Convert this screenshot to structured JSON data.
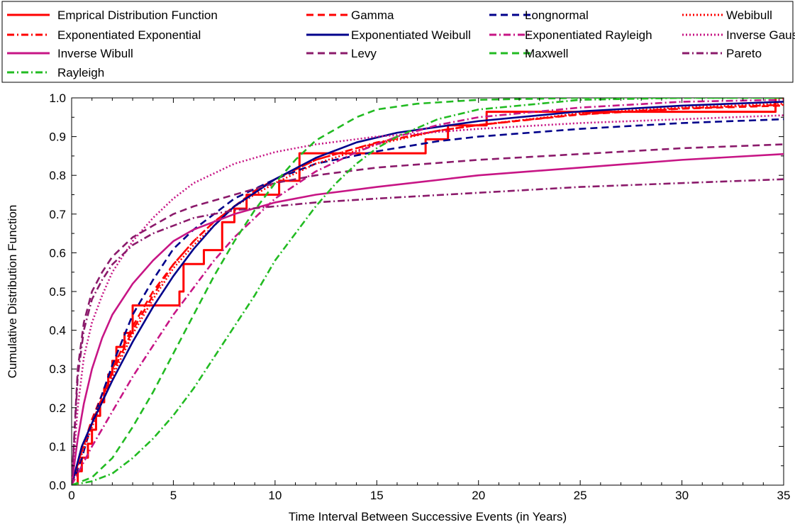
{
  "chart_data": {
    "type": "line",
    "title": "",
    "xlabel": "Time Interval Between Successive Events (in Years)",
    "ylabel": "Cumulative Distribution Function",
    "xlim": [
      0,
      35
    ],
    "ylim": [
      0,
      1
    ],
    "xticks": [
      "0",
      "5",
      "10",
      "15",
      "20",
      "25",
      "30",
      "35"
    ],
    "yticks": [
      "0.0",
      "0.1",
      "0.2",
      "0.3",
      "0.4",
      "0.5",
      "0.6",
      "0.7",
      "0.8",
      "0.9",
      "1.0"
    ],
    "grid": false,
    "legend_position": "top",
    "legend_columns": 4,
    "series": [
      {
        "name": "Emprical Distribution Function",
        "color": "#ff0000",
        "dash": "solid",
        "step": true,
        "x": [
          0,
          0.3,
          0.5,
          0.8,
          1.0,
          1.2,
          1.4,
          1.6,
          1.8,
          2.0,
          2.2,
          2.6,
          3.0,
          5.3,
          5.5,
          6.5,
          7.4,
          8.0,
          8.6,
          10.2,
          11.2,
          17.4,
          18.5,
          20.4,
          34.6,
          35
        ],
        "y": [
          0,
          0.036,
          0.071,
          0.107,
          0.143,
          0.179,
          0.214,
          0.25,
          0.286,
          0.321,
          0.357,
          0.393,
          0.464,
          0.5,
          0.571,
          0.607,
          0.679,
          0.714,
          0.75,
          0.786,
          0.857,
          0.893,
          0.929,
          0.964,
          1.0,
          1.0
        ]
      },
      {
        "name": "Gamma",
        "color": "#ff0000",
        "dash": "dashed",
        "x": [
          0,
          0.5,
          1,
          2,
          3,
          4,
          5,
          6,
          7,
          8,
          9,
          10,
          12,
          14,
          16,
          18,
          20,
          25,
          30,
          35
        ],
        "y": [
          0,
          0.09,
          0.17,
          0.3,
          0.41,
          0.5,
          0.57,
          0.63,
          0.68,
          0.72,
          0.76,
          0.79,
          0.84,
          0.87,
          0.895,
          0.915,
          0.93,
          0.957,
          0.972,
          0.98
        ]
      },
      {
        "name": "Longnormal",
        "color": "#00008b",
        "dash": "dashed",
        "x": [
          0,
          0.5,
          1,
          2,
          3,
          4,
          5,
          6,
          7,
          8,
          10,
          12,
          15,
          18,
          20,
          25,
          30,
          35
        ],
        "y": [
          0,
          0.07,
          0.16,
          0.31,
          0.44,
          0.53,
          0.61,
          0.66,
          0.7,
          0.74,
          0.79,
          0.83,
          0.862,
          0.888,
          0.9,
          0.92,
          0.935,
          0.945
        ]
      },
      {
        "name": "Webibull",
        "color": "#ff0000",
        "dash": "dotted",
        "x": [
          0,
          0.5,
          1,
          2,
          3,
          4,
          5,
          6,
          7,
          8,
          10,
          12,
          15,
          18,
          20,
          25,
          30,
          35
        ],
        "y": [
          0,
          0.08,
          0.15,
          0.28,
          0.39,
          0.48,
          0.56,
          0.62,
          0.67,
          0.72,
          0.78,
          0.83,
          0.88,
          0.915,
          0.93,
          0.96,
          0.975,
          0.985
        ]
      },
      {
        "name": "Exponentiated Exponential",
        "color": "#ff0000",
        "dash": "dashdot",
        "x": [
          0,
          0.5,
          1,
          2,
          3,
          4,
          5,
          6,
          7,
          8,
          10,
          12,
          15,
          18,
          20,
          25,
          30,
          35
        ],
        "y": [
          0,
          0.09,
          0.16,
          0.29,
          0.4,
          0.49,
          0.57,
          0.63,
          0.68,
          0.72,
          0.79,
          0.84,
          0.885,
          0.915,
          0.93,
          0.958,
          0.973,
          0.982
        ]
      },
      {
        "name": "Exponentiated Weibull",
        "color": "#00008b",
        "dash": "solid",
        "x": [
          0,
          0.5,
          1,
          2,
          3,
          4,
          5,
          6,
          7,
          8,
          10,
          12,
          14,
          16,
          18,
          20,
          25,
          30,
          35
        ],
        "y": [
          0,
          0.1,
          0.16,
          0.27,
          0.37,
          0.46,
          0.54,
          0.61,
          0.67,
          0.72,
          0.79,
          0.845,
          0.885,
          0.91,
          0.925,
          0.94,
          0.965,
          0.98,
          0.99
        ]
      },
      {
        "name": "Exponentiated Rayleigh",
        "color": "#c71585",
        "dash": "dashdot",
        "x": [
          0,
          0.5,
          1,
          2,
          3,
          4,
          5,
          6,
          7,
          8,
          10,
          12,
          14,
          16,
          18,
          20,
          25,
          30,
          35
        ],
        "y": [
          0,
          0.05,
          0.1,
          0.19,
          0.28,
          0.36,
          0.44,
          0.51,
          0.58,
          0.64,
          0.74,
          0.81,
          0.86,
          0.9,
          0.93,
          0.95,
          0.975,
          0.99,
          0.995
        ]
      },
      {
        "name": "Inverse Gaussian",
        "color": "#c71585",
        "dash": "dotted",
        "x": [
          0,
          0.3,
          0.6,
          1,
          1.5,
          2,
          3,
          4,
          5,
          6,
          8,
          10,
          12,
          15,
          20,
          25,
          30,
          35
        ],
        "y": [
          0,
          0.2,
          0.33,
          0.42,
          0.49,
          0.55,
          0.63,
          0.69,
          0.74,
          0.78,
          0.83,
          0.86,
          0.88,
          0.9,
          0.92,
          0.935,
          0.945,
          0.955
        ]
      },
      {
        "name": "Inverse Wibull",
        "color": "#c71585",
        "dash": "solid",
        "x": [
          0,
          0.3,
          0.6,
          1,
          1.5,
          2,
          3,
          4,
          5,
          6,
          8,
          10,
          12,
          15,
          20,
          25,
          30,
          35
        ],
        "y": [
          0,
          0.12,
          0.21,
          0.3,
          0.38,
          0.44,
          0.52,
          0.58,
          0.63,
          0.66,
          0.7,
          0.73,
          0.75,
          0.77,
          0.8,
          0.82,
          0.84,
          0.855
        ]
      },
      {
        "name": "Levy",
        "color": "#8b1a6b",
        "dash": "dashed",
        "x": [
          0,
          0.3,
          0.6,
          1,
          1.5,
          2,
          3,
          4,
          5,
          6,
          8,
          10,
          12,
          15,
          20,
          25,
          30,
          35
        ],
        "y": [
          0,
          0.3,
          0.42,
          0.5,
          0.55,
          0.59,
          0.64,
          0.67,
          0.7,
          0.72,
          0.75,
          0.78,
          0.8,
          0.82,
          0.84,
          0.855,
          0.87,
          0.88
        ]
      },
      {
        "name": "Maxwell",
        "color": "#22bb22",
        "dash": "dashed",
        "x": [
          0,
          1,
          2,
          3,
          4,
          5,
          6,
          7,
          8,
          9,
          10,
          11,
          12,
          13,
          14,
          15,
          17,
          20,
          25,
          30,
          35
        ],
        "y": [
          0,
          0.02,
          0.07,
          0.15,
          0.24,
          0.34,
          0.44,
          0.54,
          0.63,
          0.71,
          0.78,
          0.84,
          0.89,
          0.92,
          0.95,
          0.97,
          0.985,
          0.995,
          1.0,
          1.0,
          1.0
        ]
      },
      {
        "name": "Pareto",
        "color": "#8b1a6b",
        "dash": "dashdot",
        "x": [
          0,
          0.3,
          0.6,
          1,
          1.5,
          2,
          3,
          4,
          5,
          6,
          8,
          10,
          12,
          15,
          20,
          25,
          30,
          35
        ],
        "y": [
          0,
          0.28,
          0.4,
          0.48,
          0.53,
          0.57,
          0.62,
          0.65,
          0.67,
          0.69,
          0.71,
          0.72,
          0.73,
          0.74,
          0.755,
          0.77,
          0.78,
          0.79
        ]
      },
      {
        "name": "Rayleigh",
        "color": "#22bb22",
        "dash": "dashdot",
        "x": [
          0,
          1,
          2,
          3,
          4,
          5,
          6,
          7,
          8,
          9,
          10,
          11,
          12,
          13,
          14,
          15,
          16,
          18,
          20,
          25,
          30,
          35
        ],
        "y": [
          0,
          0.01,
          0.03,
          0.07,
          0.12,
          0.18,
          0.25,
          0.33,
          0.41,
          0.49,
          0.58,
          0.65,
          0.72,
          0.78,
          0.83,
          0.87,
          0.9,
          0.945,
          0.97,
          0.995,
          1.0,
          1.0
        ]
      }
    ]
  }
}
